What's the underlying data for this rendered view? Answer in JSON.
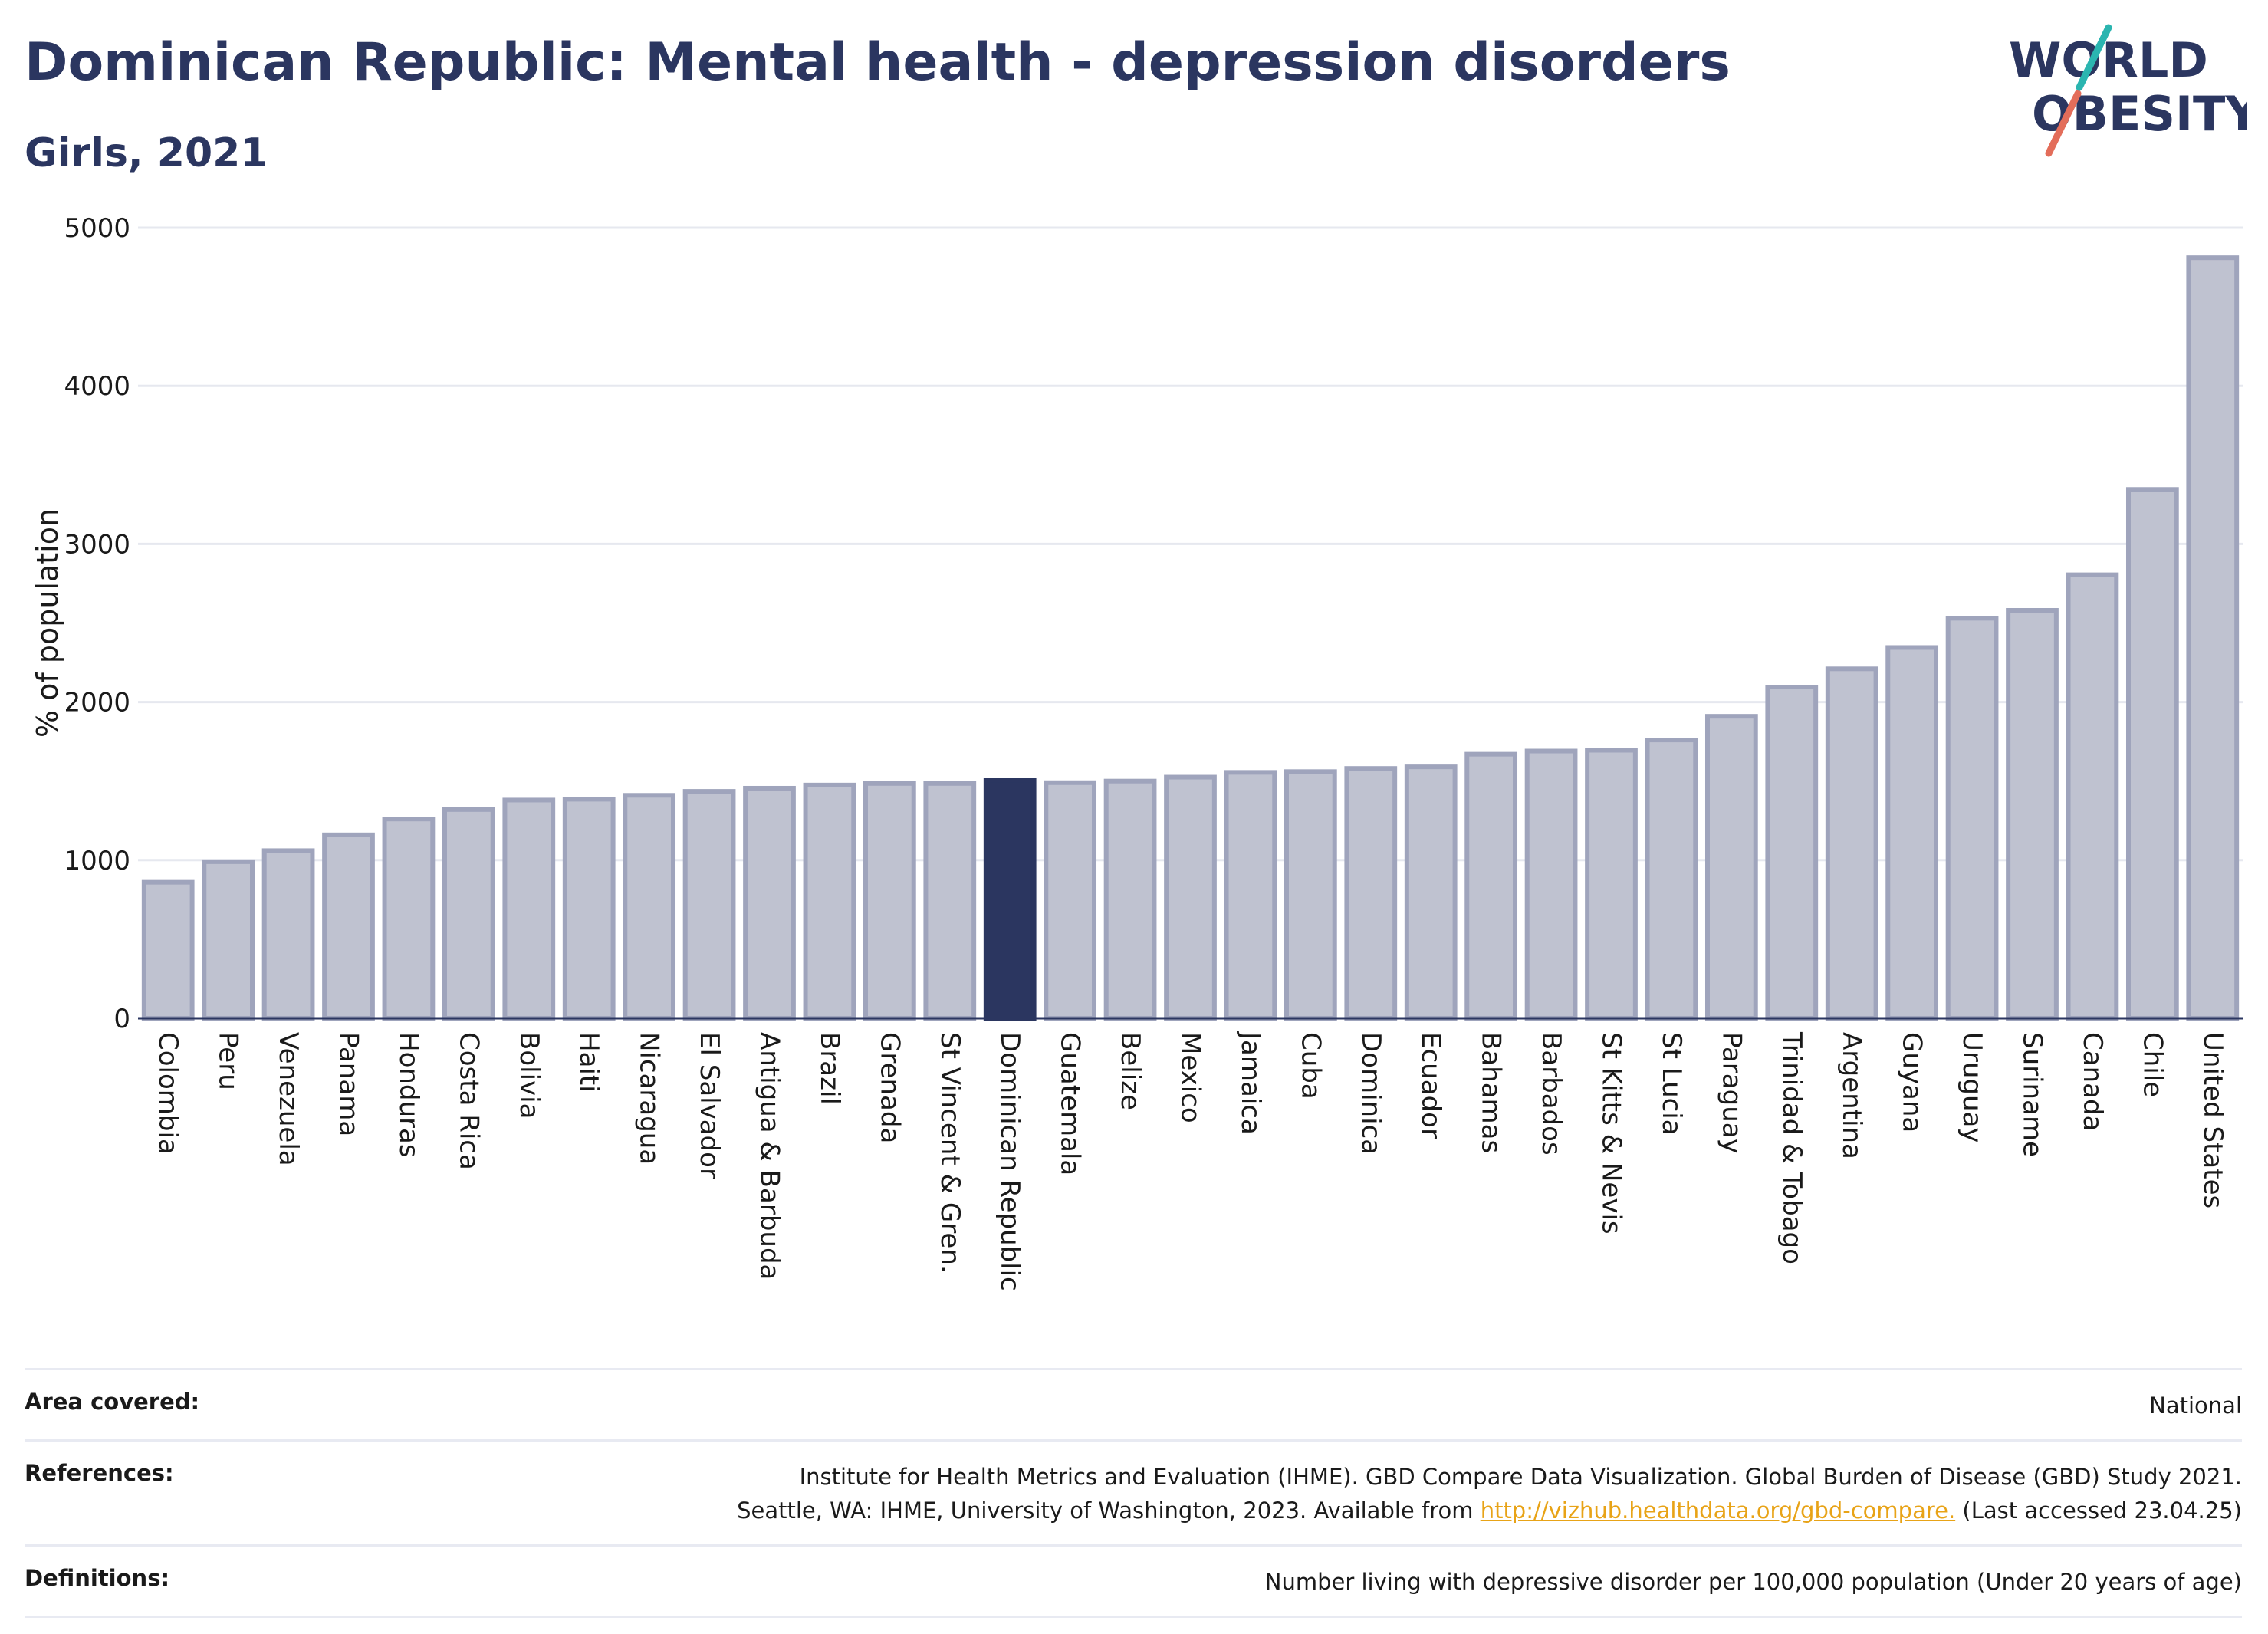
{
  "header": {
    "title": "Dominican Republic: Mental health - depression disorders",
    "subtitle": "Girls, 2021"
  },
  "logo": {
    "line1": "WORLD",
    "line2": "OBESITY"
  },
  "chart_data": {
    "type": "bar",
    "ylabel": "% of population",
    "ylim": [
      0,
      5000
    ],
    "yticks": [
      0,
      1000,
      2000,
      3000,
      4000,
      5000
    ],
    "grid": true,
    "highlight": "Dominican Republic",
    "colors": {
      "bar": "#bfc2d0",
      "bar_border": "#9fa4bc",
      "highlight": "#2b3660",
      "grid": "#e6e8ef",
      "axis": "#2b3660"
    },
    "categories": [
      "Colombia",
      "Peru",
      "Venezuela",
      "Panama",
      "Honduras",
      "Costa Rica",
      "Bolivia",
      "Haiti",
      "Nicaragua",
      "El Salvador",
      "Antigua & Barbuda",
      "Brazil",
      "Grenada",
      "St Vincent & Gren.",
      "Dominican Republic",
      "Guatemala",
      "Belize",
      "Mexico",
      "Jamaica",
      "Cuba",
      "Dominica",
      "Ecuador",
      "Bahamas",
      "Barbados",
      "St Kitts & Nevis",
      "St Lucia",
      "Paraguay",
      "Trinidad & Tobago",
      "Argentina",
      "Guyana",
      "Uruguay",
      "Suriname",
      "Canada",
      "Chile",
      "United States"
    ],
    "values": [
      860,
      990,
      1060,
      1160,
      1260,
      1320,
      1380,
      1385,
      1410,
      1435,
      1455,
      1475,
      1485,
      1485,
      1505,
      1490,
      1500,
      1525,
      1555,
      1560,
      1580,
      1590,
      1670,
      1690,
      1695,
      1760,
      1910,
      2095,
      2210,
      2345,
      2530,
      2580,
      2805,
      3345,
      4810
    ]
  },
  "footer": {
    "area_label": "Area covered:",
    "area_value": "National",
    "references_label": "References:",
    "references_line1": "Institute for Health Metrics and Evaluation (IHME). GBD Compare Data Visualization. Global Burden of Disease (GBD) Study 2021.",
    "references_line2_pre": "Seattle, WA: IHME, University of Washington, 2023. Available from ",
    "references_link": "http://vizhub.healthdata.org/gbd-compare.",
    "references_line2_post": " (Last accessed 23.04.25)",
    "definitions_label": "Definitions:",
    "definitions_value": "Number living with depressive disorder per 100,000 population (Under 20 years of age)"
  }
}
